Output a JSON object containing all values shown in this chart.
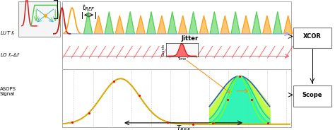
{
  "fig_width": 4.74,
  "fig_height": 1.84,
  "bg_color": "#ffffff",
  "lut_label": "LUT $f_r$",
  "lo_label": "LO $f_r$-$\\Delta f$",
  "asops_label": "ASOPS\nSignal",
  "tref_label": "$t_{REF}$",
  "Tref_label": "$T_{REF}$",
  "jitter_label": "Jitter",
  "xcor_label": "XCOR",
  "scope_label": "Scope",
  "pulse_color_red": "#cc1111",
  "pulse_color_orange": "#ff9900",
  "pulse_color_green": "#44cc44",
  "pulse_color_cyan": "#44bbbb",
  "lut_line_color": "#88aaff",
  "lo_line_color": "#ff3333",
  "gaussian_color": "#ddaa00",
  "peak_green": "#aaff00",
  "peak_yellow_green": "#ccff44",
  "peak_cyan": "#44ffcc",
  "peak_blue_outline": "#2255cc",
  "red_dot_color": "#ff0000",
  "n_pulses": 22,
  "inset_box_color": "#aaaaaa",
  "border_color": "#aaaaaa"
}
